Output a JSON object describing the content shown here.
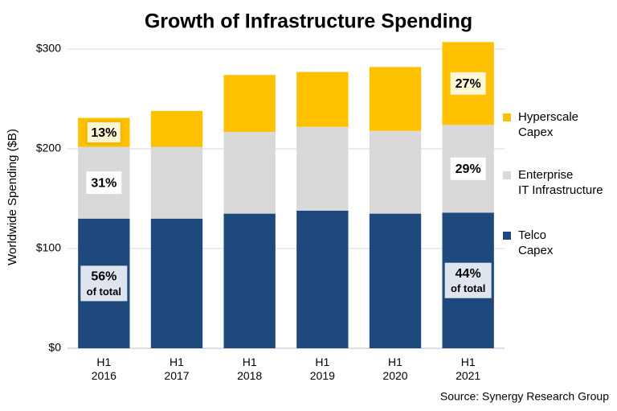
{
  "chart_data": {
    "type": "stacked_bar",
    "title": "Growth of Infrastructure Spending",
    "y_label": "Worldwide Spending ($B)",
    "source": "Source: Synergy Research Group",
    "categories": [
      "H1\n2016",
      "H1\n2017",
      "H1\n2018",
      "H1\n2019",
      "H1\n2020",
      "H1\n2021"
    ],
    "series": [
      {
        "name": "Telco\nCapex",
        "color": "#1f497d",
        "values": [
          130,
          130,
          135,
          138,
          135,
          136
        ],
        "label_fill": "#dfe5ef",
        "annotations": [
          {
            "text": "56%",
            "note": "of total"
          },
          null,
          null,
          null,
          null,
          {
            "text": "44%",
            "note": "of total"
          }
        ]
      },
      {
        "name": "Enterprise\nIT Infrastructure",
        "color": "#d9d9d9",
        "values": [
          72,
          72,
          82,
          84,
          83,
          88
        ],
        "label_fill": "#ffffff",
        "annotations": [
          {
            "text": "31%"
          },
          null,
          null,
          null,
          null,
          {
            "text": "29%"
          }
        ]
      },
      {
        "name": "Hyperscale\nCapex",
        "color": "#ffc000",
        "values": [
          29,
          36,
          57,
          55,
          64,
          83
        ],
        "label_fill": "#fff6d6",
        "annotations": [
          {
            "text": "13%",
            "border": "#f5b800"
          },
          null,
          null,
          null,
          null,
          {
            "text": "27%"
          }
        ]
      }
    ],
    "ylim": [
      0,
      310
    ],
    "yticks": [
      {
        "value": 0,
        "label": "$0"
      },
      {
        "value": 100,
        "label": "$100"
      },
      {
        "value": 200,
        "label": "$200"
      },
      {
        "value": 300,
        "label": "$300"
      }
    ],
    "grid": true,
    "legend": "right"
  }
}
